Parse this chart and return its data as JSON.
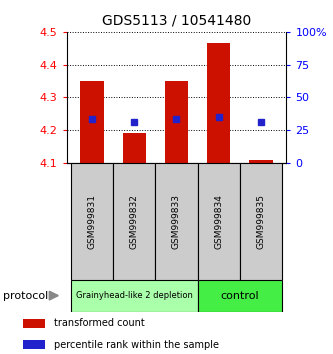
{
  "title": "GDS5113 / 10541480",
  "samples": [
    "GSM999831",
    "GSM999832",
    "GSM999833",
    "GSM999834",
    "GSM999835"
  ],
  "bar_bottoms": [
    4.1,
    4.1,
    4.1,
    4.1,
    4.1
  ],
  "bar_tops": [
    4.35,
    4.19,
    4.35,
    4.465,
    4.11
  ],
  "percentile_values": [
    4.235,
    4.225,
    4.235,
    4.24,
    4.225
  ],
  "ylim": [
    4.1,
    4.5
  ],
  "yticks_left": [
    4.1,
    4.2,
    4.3,
    4.4,
    4.5
  ],
  "yticks_right": [
    0,
    25,
    50,
    75,
    100
  ],
  "ytick_right_labels": [
    "0",
    "25",
    "50",
    "75",
    "100%"
  ],
  "bar_color": "#cc1100",
  "dot_color": "#2222cc",
  "groups": [
    {
      "label": "Grainyhead-like 2 depletion",
      "samples": [
        0,
        1,
        2
      ],
      "color": "#aaffaa"
    },
    {
      "label": "control",
      "samples": [
        3,
        4
      ],
      "color": "#44ee44"
    }
  ],
  "protocol_label": "protocol",
  "legend_items": [
    {
      "color": "#cc1100",
      "label": "transformed count"
    },
    {
      "color": "#2222cc",
      "label": "percentile rank within the sample"
    }
  ],
  "background_color": "#ffffff",
  "sample_box_color": "#cccccc",
  "figsize": [
    3.33,
    3.54
  ],
  "dpi": 100
}
